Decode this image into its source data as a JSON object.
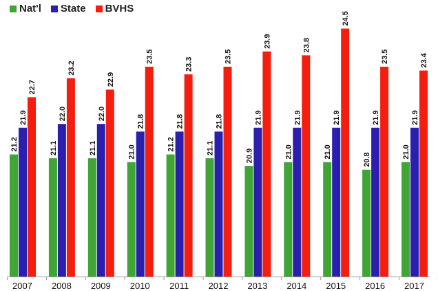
{
  "chart_data": {
    "type": "bar",
    "title": "",
    "xlabel": "",
    "ylabel": "",
    "categories": [
      "2007",
      "2008",
      "2009",
      "2010",
      "2011",
      "2012",
      "2013",
      "2014",
      "2015",
      "2016",
      "2017"
    ],
    "series": [
      {
        "name": "Nat'l",
        "color": "#3fa535",
        "values": [
          21.2,
          21.1,
          21.1,
          21.0,
          21.2,
          21.1,
          20.9,
          21.0,
          21.0,
          20.8,
          21.0
        ]
      },
      {
        "name": "State",
        "color": "#2b1fae",
        "values": [
          21.9,
          22.0,
          22.0,
          21.8,
          21.8,
          21.8,
          21.9,
          21.9,
          21.9,
          21.9,
          21.9
        ]
      },
      {
        "name": "BVHS",
        "color": "#f51d0e",
        "values": [
          22.7,
          23.2,
          22.9,
          23.5,
          23.3,
          23.5,
          23.9,
          23.8,
          24.5,
          23.5,
          23.4
        ]
      }
    ],
    "ylim": [
      18.0,
      24.6
    ],
    "legend_position": "top-left",
    "grid": false
  }
}
